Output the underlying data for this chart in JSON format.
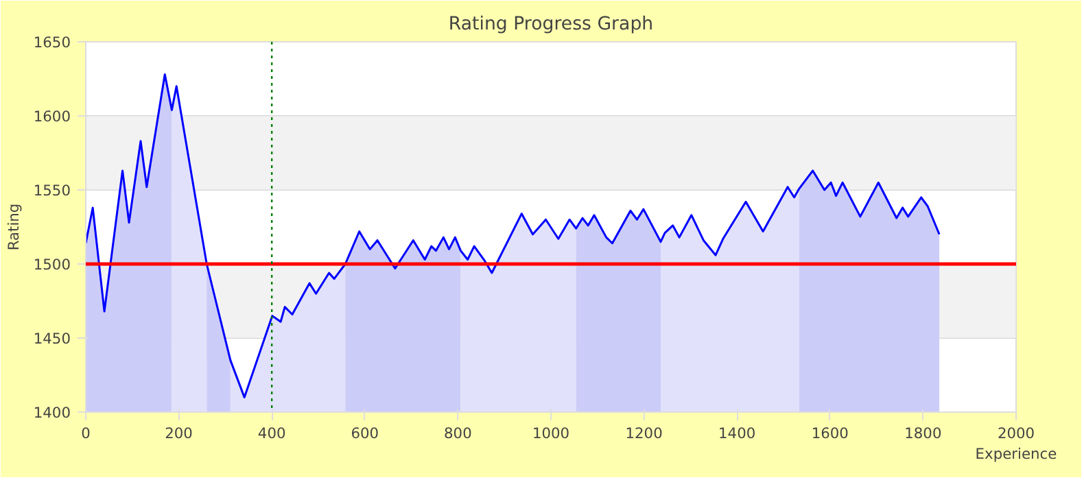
{
  "chart_data": {
    "type": "line",
    "title": "Rating Progress Graph",
    "xlabel": "Experience",
    "ylabel": "Rating",
    "xlim": [
      0,
      2000
    ],
    "xticks": [
      0,
      200,
      400,
      600,
      800,
      1000,
      1200,
      1400,
      1600,
      1800,
      2000
    ],
    "ylim": [
      1400,
      1650
    ],
    "yticks": [
      1400,
      1450,
      1500,
      1550,
      1600,
      1650
    ],
    "grid": "y",
    "bands": [
      {
        "axis": "y",
        "from": 1450,
        "to": 1500,
        "color": "#f2f2f2"
      },
      {
        "axis": "y",
        "from": 1550,
        "to": 1600,
        "color": "#f2f2f2"
      }
    ],
    "ref_lines": [
      {
        "axis": "y",
        "value": 1500,
        "color": "#ff0000",
        "line_style": "solid"
      },
      {
        "axis": "x",
        "value": 400,
        "color": "#008000",
        "line_style": "dotted"
      }
    ],
    "series": [
      {
        "type": "area",
        "color": "#ccccf8",
        "x": [
          0,
          15,
          40,
          79,
          93,
          118,
          131,
          170,
          185
        ],
        "values": [
          1514,
          1538,
          1468,
          1563,
          1528,
          1583,
          1552,
          1628,
          1604
        ]
      },
      {
        "type": "area",
        "color": "#e1e1fb",
        "x": [
          185,
          195,
          260
        ],
        "values": [
          1604,
          1620,
          1500
        ]
      },
      {
        "type": "area",
        "color": "#ccccf8",
        "x": [
          260,
          311
        ],
        "values": [
          1500,
          1435
        ]
      },
      {
        "type": "area",
        "color": "#e1e1fb",
        "x": [
          311,
          341,
          401,
          419,
          428,
          444,
          481,
          495,
          523,
          534,
          558
        ],
        "values": [
          1435,
          1410,
          1465,
          1461,
          1471,
          1466,
          1487,
          1480,
          1494,
          1490,
          1500
        ]
      },
      {
        "type": "area",
        "color": "#ccccf8",
        "x": [
          558,
          588,
          611,
          627,
          665,
          704,
          729,
          743,
          753,
          769,
          781,
          794,
          806
        ],
        "values": [
          1500,
          1522,
          1510,
          1516,
          1497,
          1516,
          1503,
          1512,
          1509,
          1518,
          1510,
          1518,
          1509
        ]
      },
      {
        "type": "area",
        "color": "#e1e1fb",
        "x": [
          806,
          821,
          835,
          858,
          873,
          937,
          961,
          989,
          1016,
          1040,
          1054
        ],
        "values": [
          1509,
          1503,
          1512,
          1502,
          1494,
          1534,
          1520,
          1530,
          1517,
          1530,
          1524
        ]
      },
      {
        "type": "area",
        "color": "#ccccf8",
        "x": [
          1054,
          1068,
          1080,
          1093,
          1119,
          1132,
          1171,
          1185,
          1199,
          1236
        ],
        "values": [
          1524,
          1531,
          1526,
          1533,
          1518,
          1514,
          1536,
          1530,
          1537,
          1515
        ]
      },
      {
        "type": "area",
        "color": "#e1e1fb",
        "x": [
          1236,
          1245,
          1262,
          1276,
          1302,
          1328,
          1354,
          1370,
          1419,
          1456,
          1509,
          1523,
          1534
        ],
        "values": [
          1515,
          1521,
          1526,
          1518,
          1533,
          1516,
          1506,
          1517,
          1542,
          1522,
          1552,
          1545,
          1551
        ]
      },
      {
        "type": "area",
        "color": "#ccccf8",
        "x": [
          1534,
          1563,
          1588,
          1602,
          1613,
          1627,
          1665,
          1704,
          1743,
          1756,
          1768,
          1796,
          1810,
          1835
        ],
        "values": [
          1551,
          1563,
          1550,
          1555,
          1546,
          1555,
          1532,
          1555,
          1531,
          1538,
          1532,
          1545,
          1539,
          1520
        ]
      },
      {
        "color": "#0000ff",
        "x": [
          0,
          15,
          40,
          79,
          93,
          118,
          131,
          170,
          185,
          195,
          260,
          311,
          341,
          401,
          419,
          428,
          444,
          481,
          495,
          523,
          534,
          558,
          588,
          611,
          627,
          665,
          704,
          729,
          743,
          753,
          769,
          781,
          794,
          806,
          821,
          835,
          858,
          873,
          937,
          961,
          989,
          1016,
          1040,
          1054,
          1068,
          1080,
          1093,
          1119,
          1132,
          1171,
          1185,
          1199,
          1236,
          1245,
          1262,
          1276,
          1302,
          1328,
          1354,
          1370,
          1419,
          1456,
          1509,
          1523,
          1534,
          1563,
          1588,
          1602,
          1613,
          1627,
          1665,
          1704,
          1743,
          1756,
          1768,
          1796,
          1810,
          1835
        ],
        "values": [
          1514,
          1538,
          1468,
          1563,
          1528,
          1583,
          1552,
          1628,
          1604,
          1620,
          1500,
          1435,
          1410,
          1465,
          1461,
          1471,
          1466,
          1487,
          1480,
          1494,
          1490,
          1500,
          1522,
          1510,
          1516,
          1497,
          1516,
          1503,
          1512,
          1509,
          1518,
          1510,
          1518,
          1509,
          1503,
          1512,
          1502,
          1494,
          1534,
          1520,
          1530,
          1517,
          1530,
          1524,
          1531,
          1526,
          1533,
          1518,
          1514,
          1536,
          1530,
          1537,
          1515,
          1521,
          1526,
          1518,
          1533,
          1516,
          1506,
          1517,
          1542,
          1522,
          1552,
          1545,
          1551,
          1563,
          1550,
          1555,
          1546,
          1555,
          1532,
          1555,
          1531,
          1538,
          1532,
          1545,
          1539,
          1520
        ]
      }
    ]
  }
}
